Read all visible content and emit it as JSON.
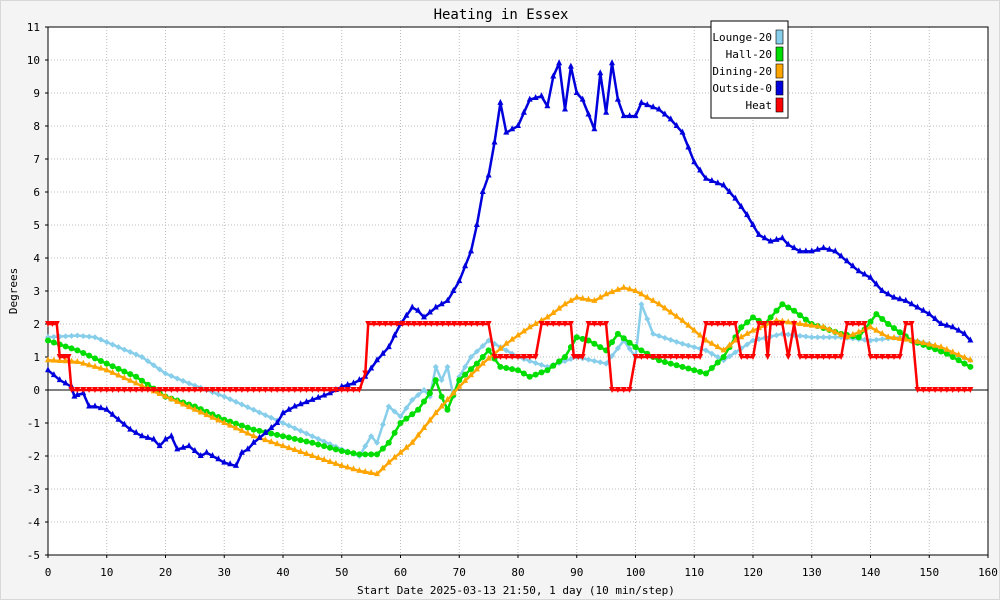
{
  "chart_data": {
    "type": "line",
    "title": "Heating in Essex",
    "xlabel": "Start Date 2025-03-13 21:50, 1 day (10 min/step)",
    "ylabel": "Degrees",
    "xlim": [
      0,
      160
    ],
    "ylim": [
      -5,
      11
    ],
    "x_ticks": [
      "0",
      "10",
      "20",
      "30",
      "40",
      "50",
      "60",
      "70",
      "80",
      "90",
      "100",
      "110",
      "120",
      "130",
      "140",
      "150",
      "160"
    ],
    "y_ticks": [
      "-5",
      "-4",
      "-3",
      "-2",
      "-1",
      "0",
      "1",
      "2",
      "3",
      "4",
      "5",
      "6",
      "7",
      "8",
      "9",
      "10",
      "11"
    ],
    "grid": true,
    "legend_position": "top-right",
    "series": [
      {
        "name": "Lounge-20",
        "color": "#87ceeb",
        "marker": "diamond",
        "points": [
          [
            0,
            1.6
          ],
          [
            5,
            1.65
          ],
          [
            8,
            1.6
          ],
          [
            12,
            1.3
          ],
          [
            16,
            1.0
          ],
          [
            20,
            0.5
          ],
          [
            24,
            0.2
          ],
          [
            30,
            -0.2
          ],
          [
            35,
            -0.6
          ],
          [
            40,
            -1.0
          ],
          [
            45,
            -1.4
          ],
          [
            50,
            -1.8
          ],
          [
            53,
            -2.0
          ],
          [
            55,
            -1.4
          ],
          [
            56,
            -1.6
          ],
          [
            58,
            -0.5
          ],
          [
            60,
            -0.8
          ],
          [
            62,
            -0.3
          ],
          [
            64,
            0.0
          ],
          [
            65,
            -0.2
          ],
          [
            66,
            0.7
          ],
          [
            67,
            0.3
          ],
          [
            68,
            0.7
          ],
          [
            69,
            -0.2
          ],
          [
            70,
            0.4
          ],
          [
            72,
            1.0
          ],
          [
            75,
            1.5
          ],
          [
            80,
            1.0
          ],
          [
            85,
            0.7
          ],
          [
            90,
            1.0
          ],
          [
            95,
            0.8
          ],
          [
            98,
            1.5
          ],
          [
            100,
            1.0
          ],
          [
            101,
            2.6
          ],
          [
            103,
            1.7
          ],
          [
            108,
            1.4
          ],
          [
            112,
            1.2
          ],
          [
            115,
            0.9
          ],
          [
            120,
            1.5
          ],
          [
            125,
            1.7
          ],
          [
            130,
            1.6
          ],
          [
            135,
            1.6
          ],
          [
            140,
            1.5
          ],
          [
            145,
            1.6
          ],
          [
            150,
            1.4
          ],
          [
            157,
            0.9
          ]
        ]
      },
      {
        "name": "Hall-20",
        "color": "#00dd00",
        "marker": "circle",
        "points": [
          [
            0,
            1.5
          ],
          [
            5,
            1.2
          ],
          [
            10,
            0.8
          ],
          [
            15,
            0.4
          ],
          [
            20,
            -0.2
          ],
          [
            25,
            -0.5
          ],
          [
            30,
            -0.9
          ],
          [
            35,
            -1.2
          ],
          [
            40,
            -1.4
          ],
          [
            45,
            -1.6
          ],
          [
            50,
            -1.85
          ],
          [
            53,
            -1.95
          ],
          [
            56,
            -1.95
          ],
          [
            58,
            -1.6
          ],
          [
            60,
            -1.0
          ],
          [
            63,
            -0.6
          ],
          [
            65,
            -0.1
          ],
          [
            66,
            0.3
          ],
          [
            67,
            -0.2
          ],
          [
            68,
            -0.6
          ],
          [
            70,
            0.3
          ],
          [
            73,
            0.8
          ],
          [
            75,
            1.2
          ],
          [
            77,
            0.7
          ],
          [
            80,
            0.6
          ],
          [
            82,
            0.4
          ],
          [
            85,
            0.6
          ],
          [
            88,
            1.0
          ],
          [
            90,
            1.6
          ],
          [
            92,
            1.5
          ],
          [
            95,
            1.2
          ],
          [
            97,
            1.7
          ],
          [
            100,
            1.3
          ],
          [
            104,
            0.9
          ],
          [
            108,
            0.7
          ],
          [
            112,
            0.5
          ],
          [
            115,
            1.0
          ],
          [
            118,
            1.9
          ],
          [
            120,
            2.2
          ],
          [
            122,
            2.0
          ],
          [
            125,
            2.6
          ],
          [
            127,
            2.4
          ],
          [
            130,
            2.0
          ],
          [
            135,
            1.7
          ],
          [
            138,
            1.6
          ],
          [
            141,
            2.3
          ],
          [
            143,
            2.0
          ],
          [
            147,
            1.5
          ],
          [
            153,
            1.1
          ],
          [
            157,
            0.7
          ]
        ]
      },
      {
        "name": "Dining-20",
        "color": "#ffa500",
        "marker": "triangle",
        "points": [
          [
            0,
            0.9
          ],
          [
            5,
            0.85
          ],
          [
            10,
            0.6
          ],
          [
            15,
            0.2
          ],
          [
            20,
            -0.2
          ],
          [
            25,
            -0.6
          ],
          [
            30,
            -1.0
          ],
          [
            35,
            -1.4
          ],
          [
            40,
            -1.7
          ],
          [
            45,
            -2.0
          ],
          [
            50,
            -2.3
          ],
          [
            53,
            -2.45
          ],
          [
            56,
            -2.55
          ],
          [
            58,
            -2.2
          ],
          [
            62,
            -1.6
          ],
          [
            66,
            -0.7
          ],
          [
            70,
            0.1
          ],
          [
            74,
            0.8
          ],
          [
            78,
            1.4
          ],
          [
            82,
            1.9
          ],
          [
            85,
            2.2
          ],
          [
            88,
            2.6
          ],
          [
            90,
            2.8
          ],
          [
            93,
            2.7
          ],
          [
            95,
            2.9
          ],
          [
            98,
            3.1
          ],
          [
            100,
            3.0
          ],
          [
            104,
            2.6
          ],
          [
            108,
            2.1
          ],
          [
            112,
            1.5
          ],
          [
            115,
            1.2
          ],
          [
            117,
            1.5
          ],
          [
            120,
            1.8
          ],
          [
            124,
            2.1
          ],
          [
            128,
            2.0
          ],
          [
            132,
            1.9
          ],
          [
            136,
            1.6
          ],
          [
            140,
            1.9
          ],
          [
            143,
            1.6
          ],
          [
            147,
            1.5
          ],
          [
            152,
            1.3
          ],
          [
            157,
            0.9
          ]
        ]
      },
      {
        "name": "Outside-0",
        "color": "#0000dd",
        "marker": "triangle",
        "points": [
          [
            0,
            0.6
          ],
          [
            1,
            0.45
          ],
          [
            2,
            0.3
          ],
          [
            3,
            0.2
          ],
          [
            4,
            0.1
          ],
          [
            4.5,
            -0.2
          ],
          [
            5,
            -0.15
          ],
          [
            6,
            -0.1
          ],
          [
            7,
            -0.5
          ],
          [
            8,
            -0.5
          ],
          [
            10,
            -0.6
          ],
          [
            12,
            -0.9
          ],
          [
            14,
            -1.2
          ],
          [
            16,
            -1.4
          ],
          [
            18,
            -1.5
          ],
          [
            19,
            -1.7
          ],
          [
            20,
            -1.5
          ],
          [
            21,
            -1.4
          ],
          [
            22,
            -1.8
          ],
          [
            24,
            -1.7
          ],
          [
            26,
            -2.0
          ],
          [
            27,
            -1.9
          ],
          [
            28,
            -2.0
          ],
          [
            30,
            -2.2
          ],
          [
            32,
            -2.3
          ],
          [
            33,
            -1.9
          ],
          [
            34,
            -1.8
          ],
          [
            35,
            -1.6
          ],
          [
            37,
            -1.3
          ],
          [
            39,
            -1.0
          ],
          [
            40,
            -0.7
          ],
          [
            42,
            -0.5
          ],
          [
            45,
            -0.3
          ],
          [
            48,
            -0.1
          ],
          [
            50,
            0.1
          ],
          [
            52,
            0.2
          ],
          [
            54,
            0.4
          ],
          [
            56,
            0.9
          ],
          [
            58,
            1.3
          ],
          [
            60,
            2.0
          ],
          [
            62,
            2.5
          ],
          [
            63,
            2.4
          ],
          [
            64,
            2.2
          ],
          [
            66,
            2.5
          ],
          [
            68,
            2.7
          ],
          [
            70,
            3.3
          ],
          [
            72,
            4.2
          ],
          [
            73,
            5.0
          ],
          [
            74,
            6.0
          ],
          [
            75,
            6.5
          ],
          [
            76,
            7.5
          ],
          [
            77,
            8.7
          ],
          [
            78,
            7.8
          ],
          [
            80,
            8.0
          ],
          [
            82,
            8.8
          ],
          [
            84,
            8.9
          ],
          [
            85,
            8.6
          ],
          [
            86,
            9.5
          ],
          [
            87,
            9.9
          ],
          [
            88,
            8.5
          ],
          [
            89,
            9.8
          ],
          [
            90,
            9.0
          ],
          [
            91,
            8.8
          ],
          [
            93,
            7.9
          ],
          [
            94,
            9.6
          ],
          [
            95,
            8.4
          ],
          [
            96,
            9.9
          ],
          [
            97,
            8.8
          ],
          [
            98,
            8.3
          ],
          [
            100,
            8.3
          ],
          [
            101,
            8.7
          ],
          [
            104,
            8.5
          ],
          [
            106,
            8.2
          ],
          [
            108,
            7.8
          ],
          [
            110,
            6.9
          ],
          [
            112,
            6.4
          ],
          [
            115,
            6.2
          ],
          [
            117,
            5.8
          ],
          [
            119,
            5.3
          ],
          [
            121,
            4.7
          ],
          [
            123,
            4.5
          ],
          [
            125,
            4.6
          ],
          [
            126,
            4.4
          ],
          [
            128,
            4.2
          ],
          [
            130,
            4.2
          ],
          [
            132,
            4.3
          ],
          [
            134,
            4.2
          ],
          [
            136,
            3.9
          ],
          [
            138,
            3.6
          ],
          [
            140,
            3.4
          ],
          [
            142,
            3.0
          ],
          [
            144,
            2.8
          ],
          [
            146,
            2.7
          ],
          [
            148,
            2.5
          ],
          [
            150,
            2.3
          ],
          [
            152,
            2.0
          ],
          [
            154,
            1.9
          ],
          [
            156,
            1.7
          ],
          [
            157,
            1.5
          ]
        ]
      },
      {
        "name": "Heat",
        "color": "#ff0000",
        "marker": "triangle-down",
        "points": [
          [
            0,
            2.0
          ],
          [
            1.5,
            2.0
          ],
          [
            2,
            1.0
          ],
          [
            3.5,
            1.0
          ],
          [
            4,
            0.0
          ],
          [
            53,
            0.0
          ],
          [
            54,
            0.5
          ],
          [
            54.5,
            2.0
          ],
          [
            75,
            2.0
          ],
          [
            76,
            1.0
          ],
          [
            83,
            1.0
          ],
          [
            84,
            2.0
          ],
          [
            89,
            2.0
          ],
          [
            89.5,
            1.0
          ],
          [
            91,
            1.0
          ],
          [
            92,
            2.0
          ],
          [
            95,
            2.0
          ],
          [
            96,
            0.0
          ],
          [
            99,
            0.0
          ],
          [
            100,
            1.0
          ],
          [
            111,
            1.0
          ],
          [
            112,
            2.0
          ],
          [
            117,
            2.0
          ],
          [
            118,
            1.0
          ],
          [
            120,
            1.0
          ],
          [
            121,
            2.0
          ],
          [
            122,
            2.0
          ],
          [
            122.5,
            1.0
          ],
          [
            123,
            2.0
          ],
          [
            125,
            2.0
          ],
          [
            126,
            1.0
          ],
          [
            127,
            2.0
          ],
          [
            128,
            1.0
          ],
          [
            135,
            1.0
          ],
          [
            136,
            2.0
          ],
          [
            139,
            2.0
          ],
          [
            140,
            1.0
          ],
          [
            145,
            1.0
          ],
          [
            146,
            2.0
          ],
          [
            147,
            2.0
          ],
          [
            148,
            0.0
          ],
          [
            157,
            0.0
          ]
        ]
      }
    ]
  }
}
